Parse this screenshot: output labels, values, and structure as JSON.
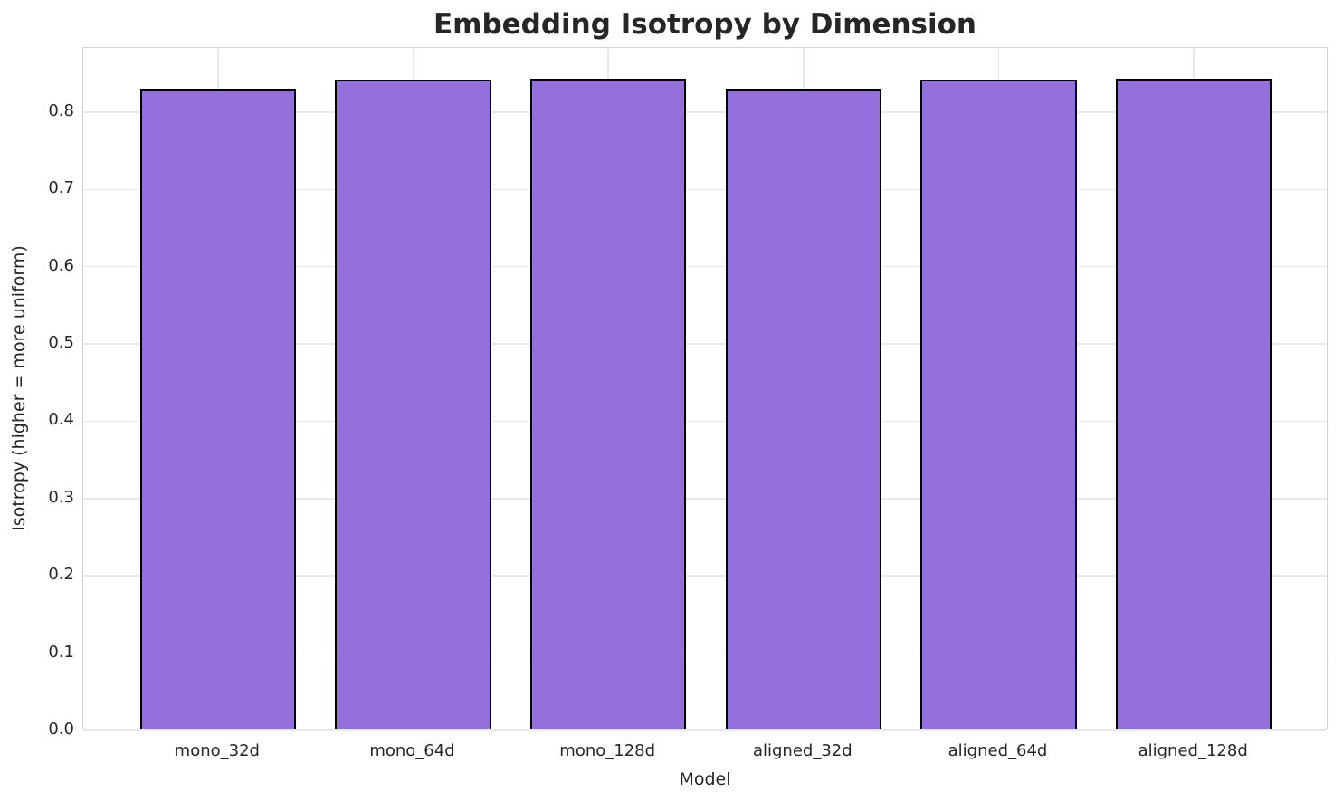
{
  "chart_data": {
    "type": "bar",
    "title": "Embedding Isotropy by Dimension",
    "xlabel": "Model",
    "ylabel": "Isotropy (higher = more uniform)",
    "categories": [
      "mono_32d",
      "mono_64d",
      "mono_128d",
      "aligned_32d",
      "aligned_64d",
      "aligned_128d"
    ],
    "values": [
      0.828,
      0.84,
      0.841,
      0.828,
      0.84,
      0.841
    ],
    "yticks": [
      0.0,
      0.1,
      0.2,
      0.3,
      0.4,
      0.5,
      0.6,
      0.7,
      0.8
    ],
    "ytick_labels": [
      "0.0",
      "0.1",
      "0.2",
      "0.3",
      "0.4",
      "0.5",
      "0.6",
      "0.7",
      "0.8"
    ],
    "ylim": [
      0,
      0.883
    ],
    "xlim": [
      -0.69,
      5.69
    ],
    "bar_width": 0.8,
    "grid": true,
    "legend": "none",
    "colors": {
      "bar_fill": "#9370DB",
      "bar_edge": "#000000",
      "grid": "#e8e8e8",
      "spine": "#d4d4d4",
      "text": "#262626"
    }
  }
}
